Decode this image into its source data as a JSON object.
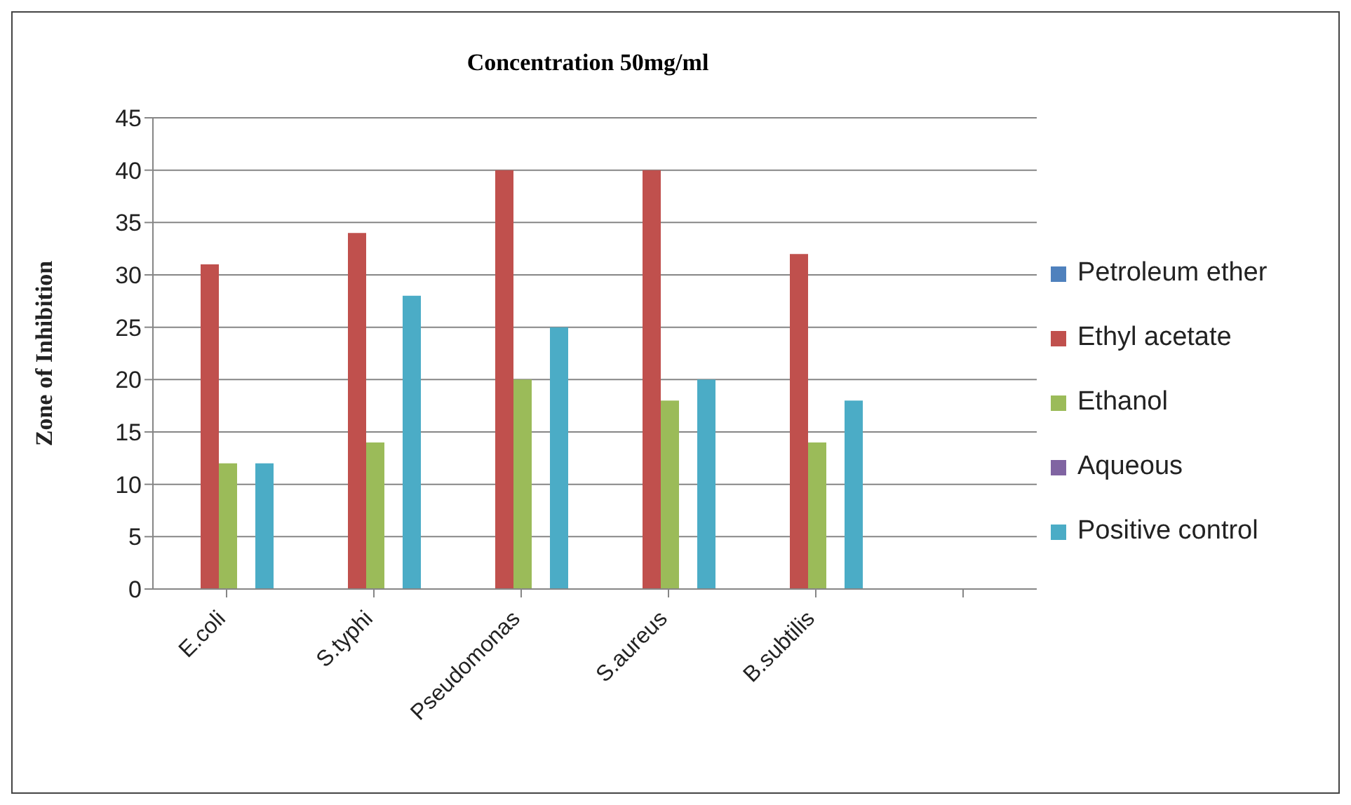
{
  "chart_data": {
    "type": "bar",
    "title": "Concentration 50mg/ml",
    "ylabel": "Zone of Inhibition",
    "categories": [
      "E.coli",
      "S.typhi",
      "Pseudomonas",
      "S.aureus",
      "B.subtilis",
      null
    ],
    "series": [
      {
        "name": "Petroleum ether",
        "color": "#4f81bd",
        "values": [
          null,
          null,
          null,
          null,
          null,
          null
        ]
      },
      {
        "name": "Ethyl acetate",
        "color": "#c0504d",
        "values": [
          31,
          34,
          40,
          40,
          32,
          null
        ]
      },
      {
        "name": "Ethanol",
        "color": "#9bbb59",
        "values": [
          12,
          14,
          20,
          18,
          14,
          null
        ]
      },
      {
        "name": "Aqueous",
        "color": "#8064a2",
        "values": [
          null,
          null,
          null,
          null,
          null,
          null
        ]
      },
      {
        "name": "Positive control",
        "color": "#4bacc6",
        "values": [
          12,
          28,
          25,
          20,
          18,
          null
        ]
      }
    ],
    "ylim": [
      0,
      45
    ],
    "yticks": [
      0,
      5,
      10,
      15,
      20,
      25,
      30,
      35,
      40,
      45
    ],
    "grid": "y",
    "legend": "right"
  }
}
